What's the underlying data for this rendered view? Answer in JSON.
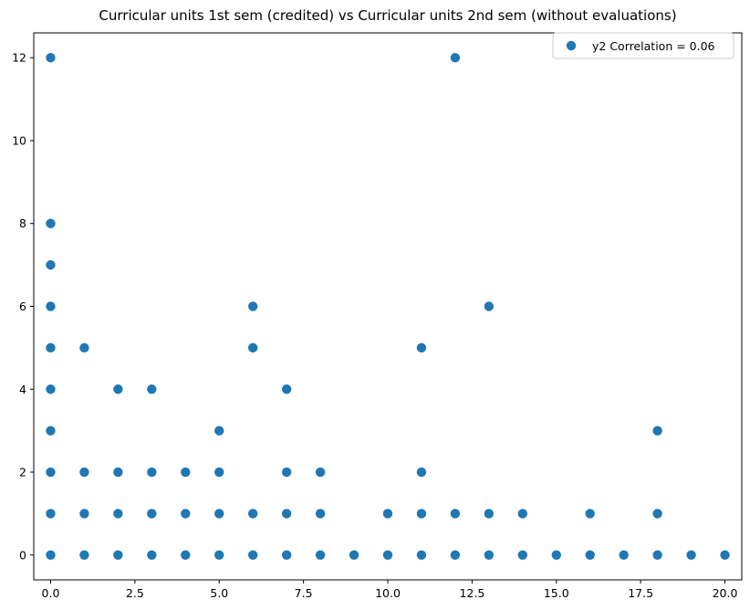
{
  "chart_data": {
    "type": "scatter",
    "title": "Curricular units 1st sem (credited) vs Curricular units 2nd sem (without evaluations)",
    "xlabel": "",
    "ylabel": "",
    "xlim": [
      -0.5,
      20.5
    ],
    "ylim": [
      -0.6,
      12.6
    ],
    "x_ticks": [
      0.0,
      2.5,
      5.0,
      7.5,
      10.0,
      12.5,
      15.0,
      17.5,
      20.0
    ],
    "x_tick_labels": [
      "0.0",
      "2.5",
      "5.0",
      "7.5",
      "10.0",
      "12.5",
      "15.0",
      "17.5",
      "20.0"
    ],
    "y_ticks": [
      0,
      2,
      4,
      6,
      8,
      10,
      12
    ],
    "y_tick_labels": [
      "0",
      "2",
      "4",
      "6",
      "8",
      "10",
      "12"
    ],
    "grid": false,
    "legend_position": "top-right",
    "series": [
      {
        "name": "y2 Correlation = 0.06",
        "color": "#1f77b4",
        "points": [
          [
            0,
            0
          ],
          [
            0,
            1
          ],
          [
            0,
            2
          ],
          [
            0,
            3
          ],
          [
            0,
            4
          ],
          [
            0,
            5
          ],
          [
            0,
            6
          ],
          [
            0,
            7
          ],
          [
            0,
            8
          ],
          [
            0,
            12
          ],
          [
            1,
            0
          ],
          [
            1,
            1
          ],
          [
            1,
            2
          ],
          [
            1,
            5
          ],
          [
            2,
            0
          ],
          [
            2,
            1
          ],
          [
            2,
            2
          ],
          [
            2,
            4
          ],
          [
            3,
            0
          ],
          [
            3,
            1
          ],
          [
            3,
            2
          ],
          [
            3,
            4
          ],
          [
            4,
            0
          ],
          [
            4,
            1
          ],
          [
            4,
            2
          ],
          [
            5,
            0
          ],
          [
            5,
            1
          ],
          [
            5,
            2
          ],
          [
            5,
            3
          ],
          [
            6,
            0
          ],
          [
            6,
            1
          ],
          [
            6,
            5
          ],
          [
            6,
            6
          ],
          [
            7,
            0
          ],
          [
            7,
            1
          ],
          [
            7,
            2
          ],
          [
            7,
            4
          ],
          [
            8,
            0
          ],
          [
            8,
            1
          ],
          [
            8,
            2
          ],
          [
            9,
            0
          ],
          [
            10,
            0
          ],
          [
            10,
            1
          ],
          [
            11,
            0
          ],
          [
            11,
            1
          ],
          [
            11,
            2
          ],
          [
            11,
            5
          ],
          [
            12,
            0
          ],
          [
            12,
            1
          ],
          [
            12,
            12
          ],
          [
            13,
            0
          ],
          [
            13,
            1
          ],
          [
            13,
            6
          ],
          [
            14,
            0
          ],
          [
            14,
            1
          ],
          [
            15,
            0
          ],
          [
            16,
            0
          ],
          [
            16,
            1
          ],
          [
            17,
            0
          ],
          [
            18,
            0
          ],
          [
            18,
            1
          ],
          [
            18,
            3
          ],
          [
            19,
            0
          ],
          [
            20,
            0
          ]
        ]
      }
    ]
  }
}
